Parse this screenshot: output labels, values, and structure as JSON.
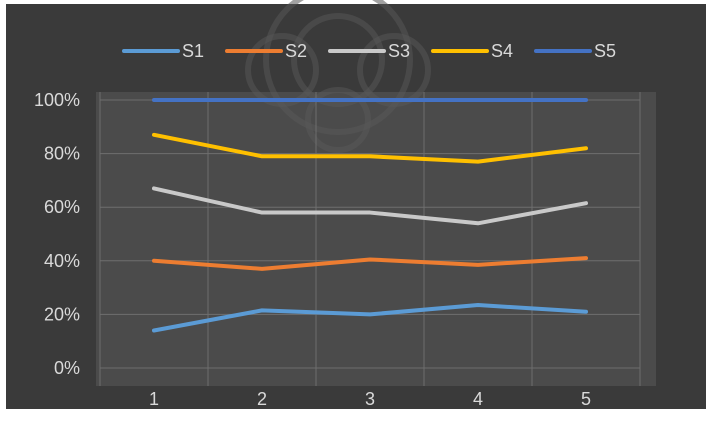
{
  "chart_data": {
    "type": "line",
    "title": "",
    "xlabel": "",
    "ylabel": "",
    "categories": [
      "1",
      "2",
      "3",
      "4",
      "5"
    ],
    "y_ticks": [
      "0%",
      "20%",
      "40%",
      "60%",
      "80%",
      "100%"
    ],
    "ylim": [
      0,
      1
    ],
    "grid": true,
    "legend_position": "top",
    "series": [
      {
        "name": "S1",
        "color": "#5b9bd5",
        "values": [
          0.14,
          0.215,
          0.2,
          0.235,
          0.21
        ]
      },
      {
        "name": "S2",
        "color": "#ed7d31",
        "values": [
          0.4,
          0.37,
          0.405,
          0.385,
          0.41
        ]
      },
      {
        "name": "S3",
        "color": "#c9c9c9",
        "values": [
          0.67,
          0.58,
          0.58,
          0.54,
          0.615
        ]
      },
      {
        "name": "S4",
        "color": "#ffc000",
        "values": [
          0.87,
          0.79,
          0.79,
          0.77,
          0.82
        ]
      },
      {
        "name": "S5",
        "color": "#4472c4",
        "values": [
          1.0,
          1.0,
          1.0,
          1.0,
          1.0
        ]
      }
    ]
  }
}
